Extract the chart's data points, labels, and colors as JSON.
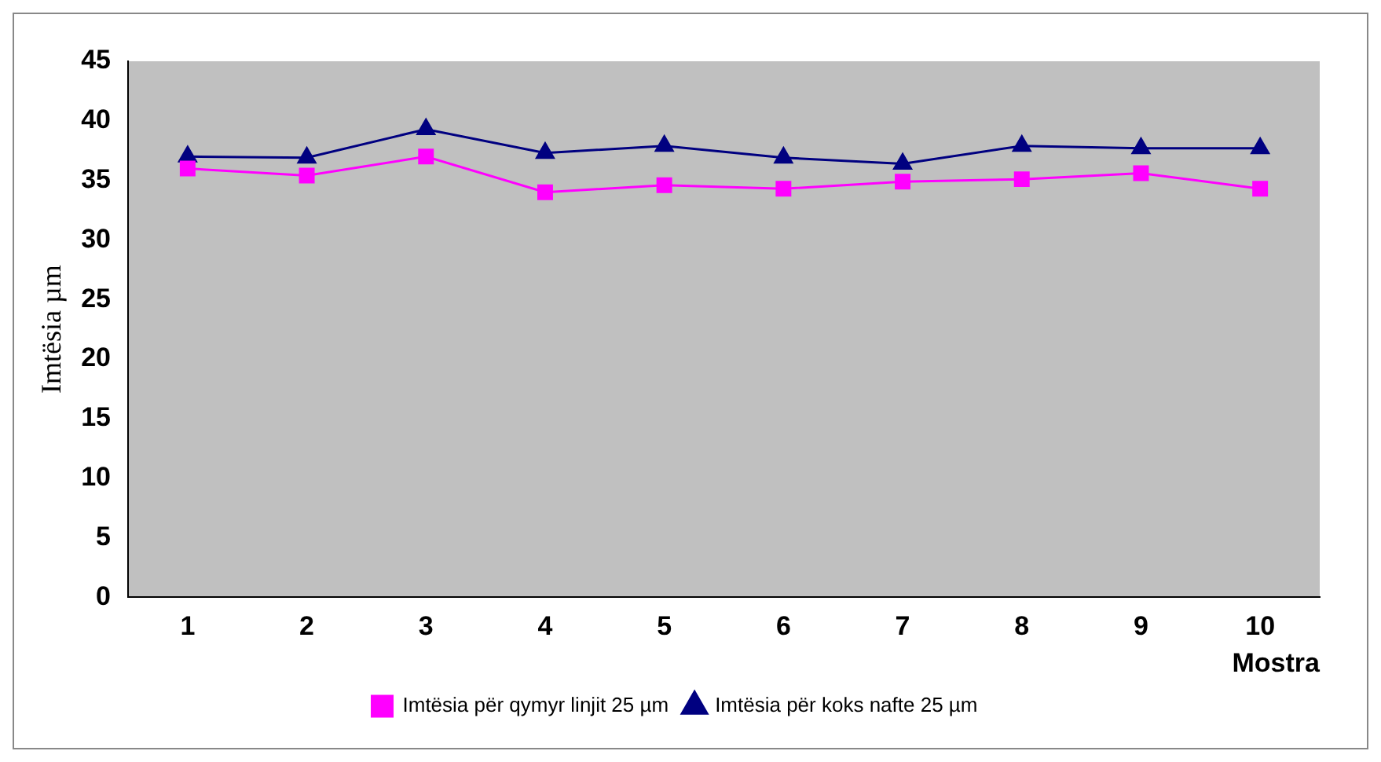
{
  "chart_data": {
    "type": "line",
    "xlabel": "Mostra",
    "ylabel": "Imtësia µm",
    "categories": [
      "1",
      "2",
      "3",
      "4",
      "5",
      "6",
      "7",
      "8",
      "9",
      "10"
    ],
    "series": [
      {
        "name": "Imtësia për qymyr linjit 25 µm",
        "color": "#ff00ff",
        "marker": "square",
        "values": [
          36,
          35.4,
          37,
          34,
          34.6,
          34.3,
          34.9,
          35.1,
          35.6,
          34.3
        ]
      },
      {
        "name": "Imtësia për koks nafte 25 µm",
        "color": "#000080",
        "marker": "triangle",
        "values": [
          37,
          36.9,
          39.3,
          37.3,
          37.9,
          36.9,
          36.4,
          37.9,
          37.7,
          37.7
        ]
      }
    ],
    "ylim": [
      0,
      45
    ],
    "yticks": [
      0,
      5,
      10,
      15,
      20,
      25,
      30,
      35,
      40,
      45
    ],
    "grid": false,
    "legend": "bottom"
  }
}
